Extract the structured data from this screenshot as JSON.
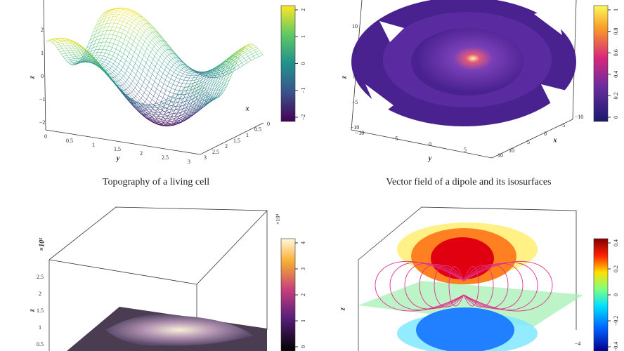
{
  "panels": [
    {
      "caption": "Topography of a living cell",
      "colorbar": {
        "ticks": [
          "2",
          "1",
          "0",
          "−1",
          "−2"
        ]
      },
      "axes": {
        "x": "x",
        "y": "y",
        "z": "z",
        "y_ticks": [
          "0",
          "0.5",
          "1",
          "1.5",
          "2",
          "2.5",
          "3"
        ],
        "x_ticks": [
          "3",
          "2.5",
          "2",
          "1.5",
          "1",
          "0.5",
          "0"
        ],
        "z_ticks": [
          "2",
          "1",
          "0",
          "−1",
          "−2"
        ]
      }
    },
    {
      "caption": "Vector field of a dipole and its isosurfaces",
      "colorbar": {
        "ticks": [
          "1",
          "0.8",
          "0.6",
          "0.4",
          "0.2",
          "0"
        ]
      },
      "axes": {
        "x": "x",
        "y": "y",
        "z": "z",
        "y_ticks": [
          "−10",
          "−5",
          "0",
          "5",
          "10"
        ],
        "x_ticks": [
          "10",
          "5",
          "0",
          "−5",
          "−10"
        ],
        "z_ticks": [
          "10",
          "5",
          "0",
          "−5",
          "−10"
        ]
      }
    },
    {
      "colorbar": {
        "multiplier": "×10⁴",
        "ticks": [
          "4",
          "3",
          "2",
          "1",
          "0"
        ]
      },
      "axes": {
        "z": "z",
        "z_multiplier": "×10⁵",
        "z_ticks": [
          "2.5",
          "2",
          "1.5",
          "1",
          "0.5"
        ]
      }
    },
    {
      "colorbar": {
        "ticks": [
          "0.4",
          "0.2",
          "0",
          "−0.2",
          "−0.4"
        ]
      },
      "axes": {
        "z": "z",
        "x_ticks": [
          "−4"
        ]
      }
    }
  ]
}
